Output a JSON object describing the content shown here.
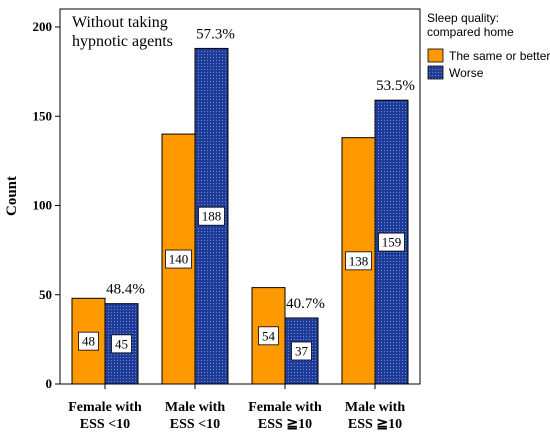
{
  "chart_data": {
    "type": "bar",
    "categories": [
      "Female with ESS <10",
      "Male with ESS <10",
      "Female with ESS ≧10",
      "Male with ESS ≧10"
    ],
    "category_lines": [
      [
        "Female with",
        "ESS <10"
      ],
      [
        "Male with",
        "ESS <10"
      ],
      [
        "Female with",
        "ESS ≧10"
      ],
      [
        "Male with",
        "ESS ≧10"
      ]
    ],
    "series": [
      {
        "name": "The same or better",
        "values": [
          48,
          140,
          54,
          138
        ],
        "color": "#FF9900"
      },
      {
        "name": "Worse",
        "values": [
          45,
          188,
          37,
          159
        ],
        "color": "#1F3C99"
      }
    ],
    "value_labels": [
      [
        "48",
        "140",
        "54",
        "138"
      ],
      [
        "45",
        "188",
        "37",
        "159"
      ]
    ],
    "percent_labels": [
      "48.4%",
      "57.3%",
      "40.7%",
      "53.5%"
    ],
    "ylabel": "Count",
    "ylim": [
      0,
      200
    ],
    "yticks": [
      0,
      50,
      100,
      150,
      200
    ],
    "annotation_lines": [
      "Without taking",
      "hypnotic agents"
    ],
    "legend": {
      "title_lines": [
        "Sleep quality:",
        "compared home"
      ],
      "placement": "top-right, outside plot"
    },
    "grid": false
  }
}
